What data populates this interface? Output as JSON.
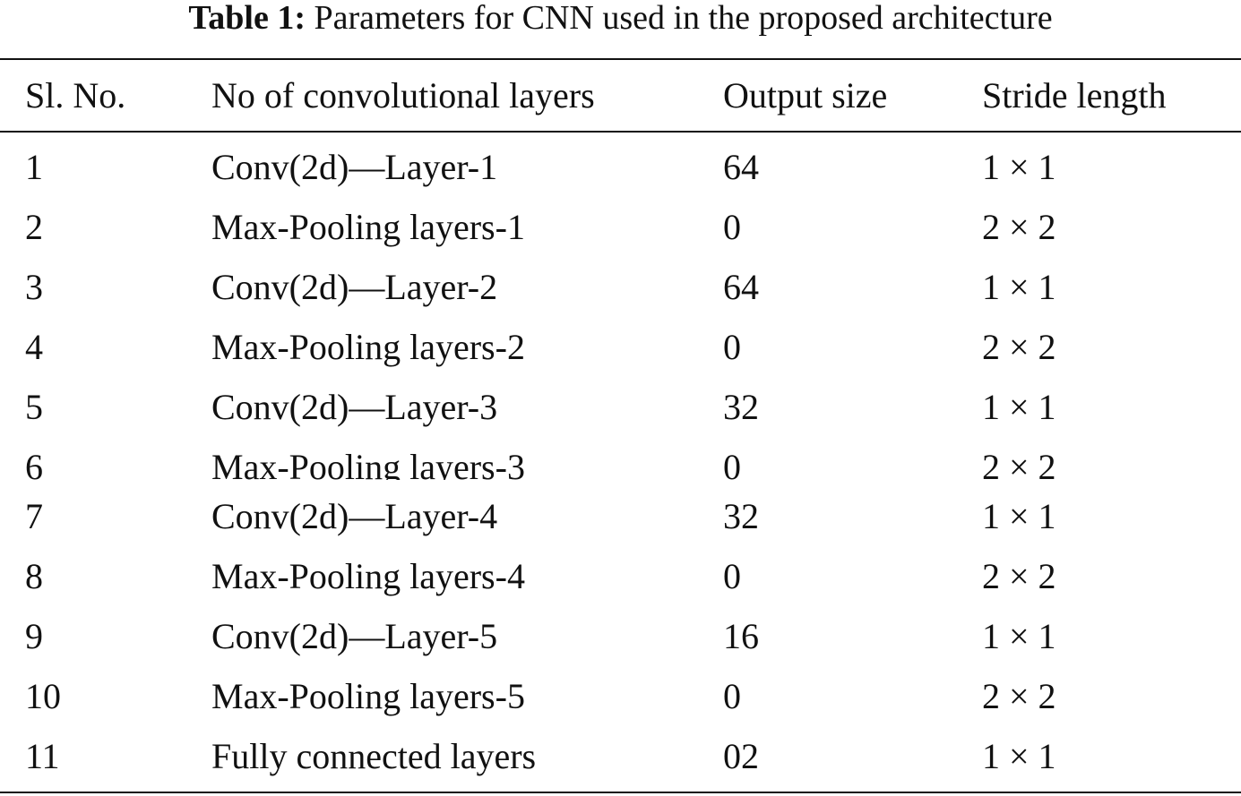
{
  "table": {
    "caption_label": "Table 1:",
    "caption_text": "Parameters for CNN used in the proposed architecture",
    "headers": [
      "Sl. No.",
      "No of convolutional layers",
      "Output size",
      "Stride length"
    ],
    "rows": [
      [
        "1",
        "Conv(2d)—Layer-1",
        "64",
        "1 × 1"
      ],
      [
        "2",
        "Max-Pooling layers-1",
        "0",
        "2 × 2"
      ],
      [
        "3",
        "Conv(2d)—Layer-2",
        "64",
        "1 × 1"
      ],
      [
        "4",
        "Max-Pooling layers-2",
        "0",
        "2 × 2"
      ],
      [
        "5",
        "Conv(2d)—Layer-3",
        "32",
        "1 × 1"
      ],
      [
        "6",
        "Max-Pooling layers-3",
        "0",
        "2 × 2"
      ],
      [
        "7",
        "Conv(2d)—Layer-4",
        "32",
        "1 × 1"
      ],
      [
        "8",
        "Max-Pooling layers-4",
        "0",
        "2 × 2"
      ],
      [
        "9",
        "Conv(2d)—Layer-5",
        "16",
        "1 × 1"
      ],
      [
        "10",
        "Max-Pooling layers-5",
        "0",
        "2 × 2"
      ],
      [
        "11",
        "Fully connected layers",
        "02",
        "1 × 1"
      ]
    ]
  }
}
